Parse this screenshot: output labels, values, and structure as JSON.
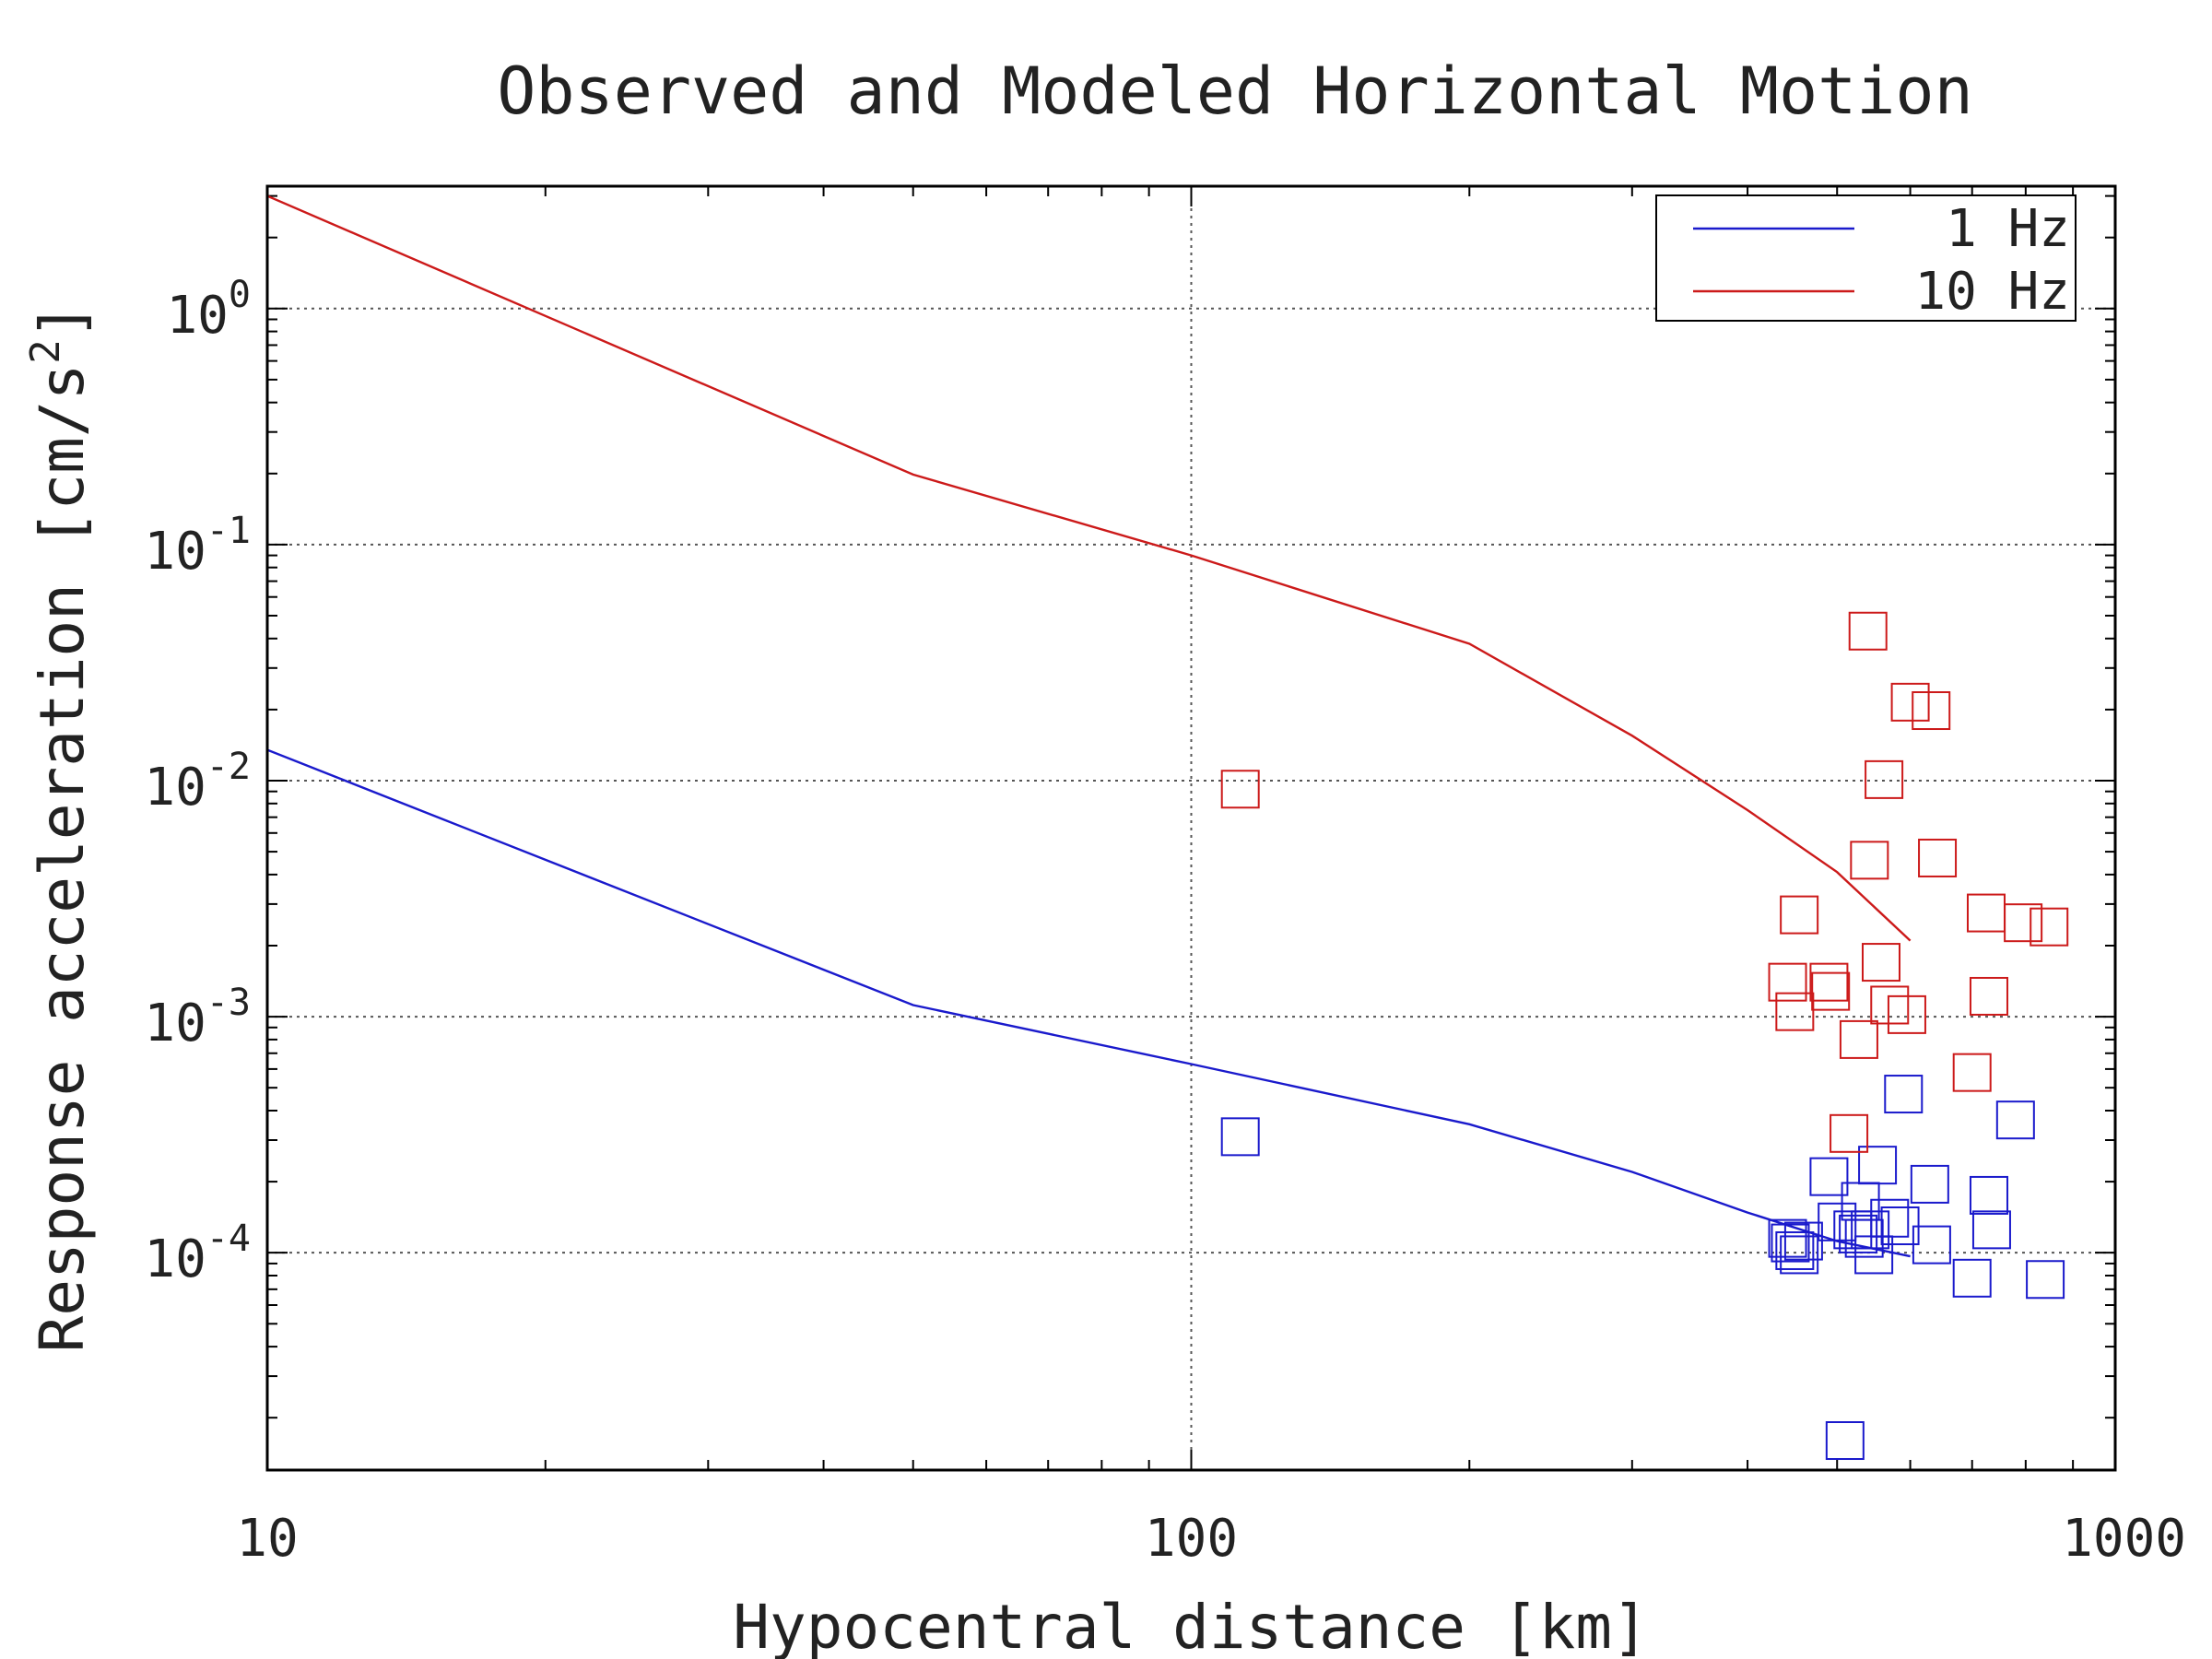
{
  "chart_data": {
    "type": "scatter",
    "title": "Observed and Modeled Horizontal Motion",
    "xlabel": "Hypocentral distance [km]",
    "ylabel": "Response acceleration [cm/s",
    "ylabel_sup": "2",
    "ylabel_close": "]",
    "xscale": "log",
    "yscale": "log",
    "xlim": [
      10,
      1000
    ],
    "ylim": [
      1.2e-05,
      3.3
    ],
    "grid": true,
    "legend_position": "top-right",
    "x_ticks": [
      {
        "value": 10,
        "label": "10"
      },
      {
        "value": 100,
        "label": "100"
      },
      {
        "value": 1000,
        "label": "1000"
      }
    ],
    "y_ticks": [
      {
        "value": 1,
        "base": "10",
        "exp": "0"
      },
      {
        "value": 0.1,
        "base": "10",
        "exp": "-1"
      },
      {
        "value": 0.01,
        "base": "10",
        "exp": "-2"
      },
      {
        "value": 0.001,
        "base": "10",
        "exp": "-3"
      },
      {
        "value": 0.0001,
        "base": "10",
        "exp": "-4"
      }
    ],
    "series": [
      {
        "name": "1 Hz",
        "color": "#1a1acc",
        "line": {
          "x": [
            10,
            50,
            100,
            200,
            300,
            400,
            500,
            600
          ],
          "y": [
            0.0135,
            0.00112,
            0.00063,
            0.00035,
            0.00022,
            0.000148,
            0.000112,
            9.65e-05
          ]
        },
        "points": [
          {
            "x": 113,
            "y": 0.00031
          },
          {
            "x": 442,
            "y": 0.000115
          },
          {
            "x": 445,
            "y": 0.00011
          },
          {
            "x": 450,
            "y": 0.000102
          },
          {
            "x": 455,
            "y": 9.8e-05
          },
          {
            "x": 460,
            "y": 0.000112
          },
          {
            "x": 490,
            "y": 0.00021
          },
          {
            "x": 500,
            "y": 0.000135
          },
          {
            "x": 510,
            "y": 1.6e-05
          },
          {
            "x": 520,
            "y": 0.000125
          },
          {
            "x": 527,
            "y": 0.00012
          },
          {
            "x": 530,
            "y": 0.000165
          },
          {
            "x": 535,
            "y": 0.000115
          },
          {
            "x": 543,
            "y": 0.000125
          },
          {
            "x": 548,
            "y": 9.8e-05
          },
          {
            "x": 553,
            "y": 0.000235
          },
          {
            "x": 570,
            "y": 0.00014
          },
          {
            "x": 585,
            "y": 0.00013
          },
          {
            "x": 590,
            "y": 0.00047
          },
          {
            "x": 630,
            "y": 0.000195
          },
          {
            "x": 633,
            "y": 0.000108
          },
          {
            "x": 700,
            "y": 7.8e-05
          },
          {
            "x": 730,
            "y": 0.000175
          },
          {
            "x": 735,
            "y": 0.000125
          },
          {
            "x": 780,
            "y": 0.000365
          },
          {
            "x": 840,
            "y": 7.7e-05
          }
        ]
      },
      {
        "name": "10 Hz",
        "color": "#cc1a1a",
        "line": {
          "x": [
            10,
            50,
            100,
            200,
            300,
            400,
            500,
            600
          ],
          "y": [
            3.0,
            0.198,
            0.09,
            0.038,
            0.0155,
            0.0075,
            0.0041,
            0.0021
          ]
        },
        "points": [
          {
            "x": 113,
            "y": 0.0092
          },
          {
            "x": 442,
            "y": 0.0014
          },
          {
            "x": 450,
            "y": 0.00105
          },
          {
            "x": 455,
            "y": 0.0027
          },
          {
            "x": 490,
            "y": 0.0014
          },
          {
            "x": 492,
            "y": 0.00128
          },
          {
            "x": 515,
            "y": 0.00032
          },
          {
            "x": 528,
            "y": 0.0008
          },
          {
            "x": 540,
            "y": 0.043
          },
          {
            "x": 542,
            "y": 0.0046
          },
          {
            "x": 558,
            "y": 0.0017
          },
          {
            "x": 562,
            "y": 0.0101
          },
          {
            "x": 570,
            "y": 0.00112
          },
          {
            "x": 595,
            "y": 0.00102
          },
          {
            "x": 600,
            "y": 0.0215
          },
          {
            "x": 632,
            "y": 0.0198
          },
          {
            "x": 642,
            "y": 0.0047
          },
          {
            "x": 700,
            "y": 0.00058
          },
          {
            "x": 725,
            "y": 0.00275
          },
          {
            "x": 730,
            "y": 0.00122
          },
          {
            "x": 795,
            "y": 0.0025
          },
          {
            "x": 848,
            "y": 0.0024
          }
        ]
      }
    ]
  }
}
